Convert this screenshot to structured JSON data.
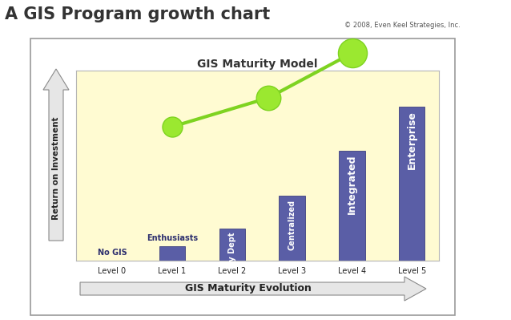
{
  "page": {
    "title": "A GIS Program growth chart",
    "credit": "© 2008, Even Keel Strategies, Inc."
  },
  "chart_data": {
    "type": "bar",
    "title": "GIS Maturity Model",
    "x_label": "GIS Maturity Evolution",
    "y_label": "Return on Investment",
    "categories": [
      "Level 0",
      "Level 1",
      "Level 2",
      "Level 3",
      "Level 4",
      "Level 5"
    ],
    "values": [
      0,
      7.5,
      17,
      34,
      58,
      81
    ],
    "annotations": [
      "No GIS",
      "Enthusiasts",
      "By Dept",
      "Centralized",
      "Integrated",
      "Enterprise"
    ],
    "color": "#5a5ea6",
    "ylim": [
      0,
      100
    ],
    "tick_labels": "x",
    "grid": false
  }
}
